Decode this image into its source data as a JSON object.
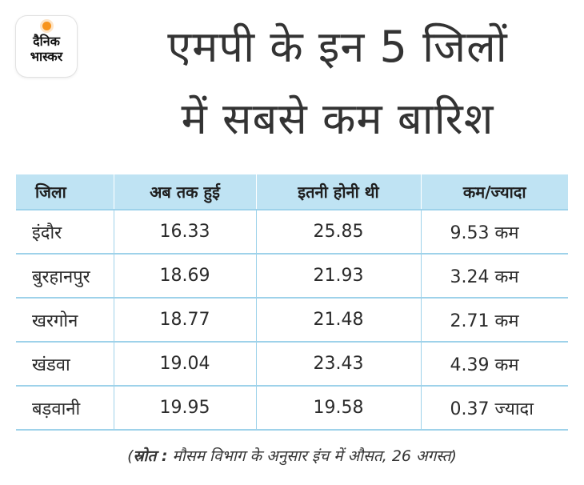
{
  "logo": {
    "line1": "दैनिक",
    "line2": "भास्कर"
  },
  "headline": {
    "line1": "एमपी के इन 5 जिलों",
    "line2": "में सबसे कम बारिश"
  },
  "table": {
    "headers": [
      "जिला",
      "अब तक हुई",
      "इतनी होनी थी",
      "कम/ज्यादा"
    ],
    "rows": [
      {
        "district": "इंदौर",
        "received": "16.33",
        "expected": "25.85",
        "difference": "9.53 कम"
      },
      {
        "district": "बुरहानपुर",
        "received": "18.69",
        "expected": "21.93",
        "difference": "3.24 कम"
      },
      {
        "district": "खरगोन",
        "received": "18.77",
        "expected": "21.48",
        "difference": "2.71 कम"
      },
      {
        "district": "खंडवा",
        "received": "19.04",
        "expected": "23.43",
        "difference": "4.39 कम"
      },
      {
        "district": "बड़वानी",
        "received": "19.95",
        "expected": "19.58",
        "difference": "0.37 ज्यादा"
      }
    ]
  },
  "source": {
    "open": "(",
    "label": "स्रोत :",
    "text": " मौसम विभाग के अनुसार इंच में औसत, 26 अगस्त",
    "close": ")"
  },
  "colors": {
    "accent": "#bfe3f3",
    "border": "#9ed2ea",
    "logo_dot": "#f7941d"
  }
}
